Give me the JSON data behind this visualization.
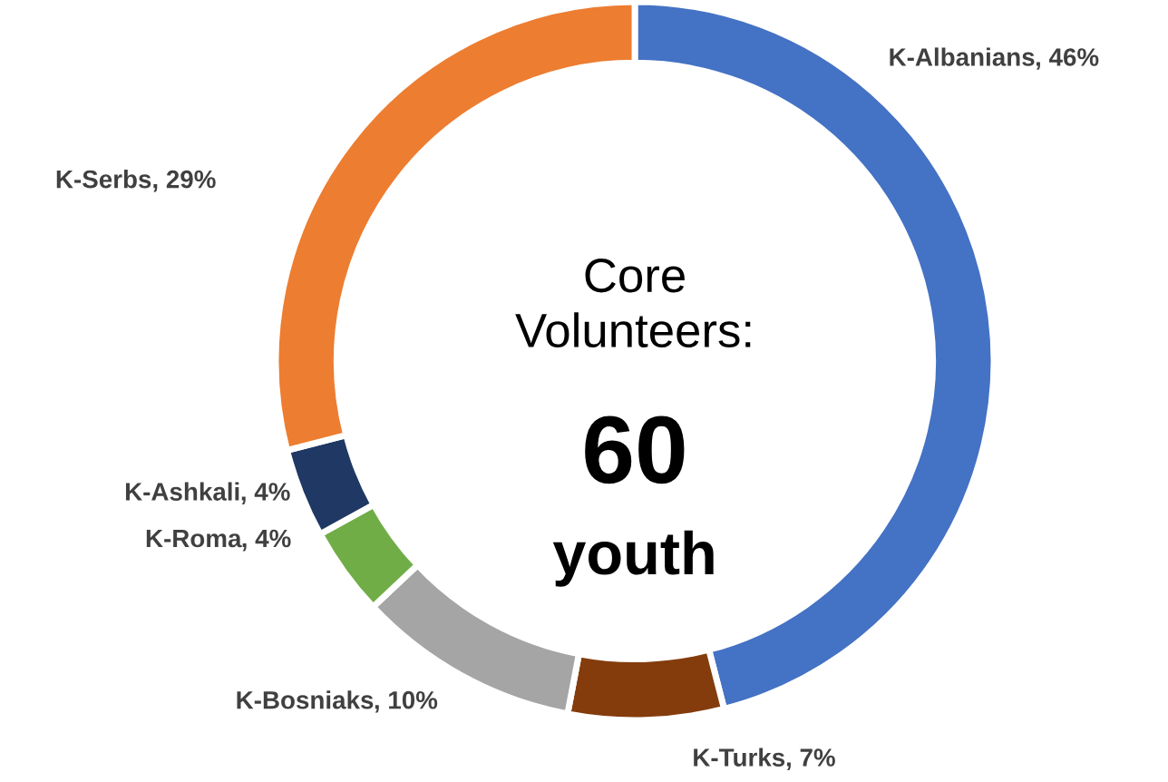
{
  "chart_data": {
    "type": "donut",
    "categories": [
      "K-Albanians",
      "K-Turks",
      "K-Bosniaks",
      "K-Roma",
      "K-Ashkali",
      "K-Serbs"
    ],
    "values": [
      46,
      7,
      10,
      4,
      4,
      29
    ],
    "colors": [
      "#4472c4",
      "#843c0c",
      "#a5a5a5",
      "#70ad47",
      "#1f3864",
      "#ed7d31"
    ],
    "value_labels": [
      ", 46%",
      ", 7%",
      ", 10%",
      ", 4%",
      ", 4%",
      ", 29%"
    ],
    "annotations": [
      "Core\nVolunteers:",
      "60",
      "youth"
    ]
  }
}
